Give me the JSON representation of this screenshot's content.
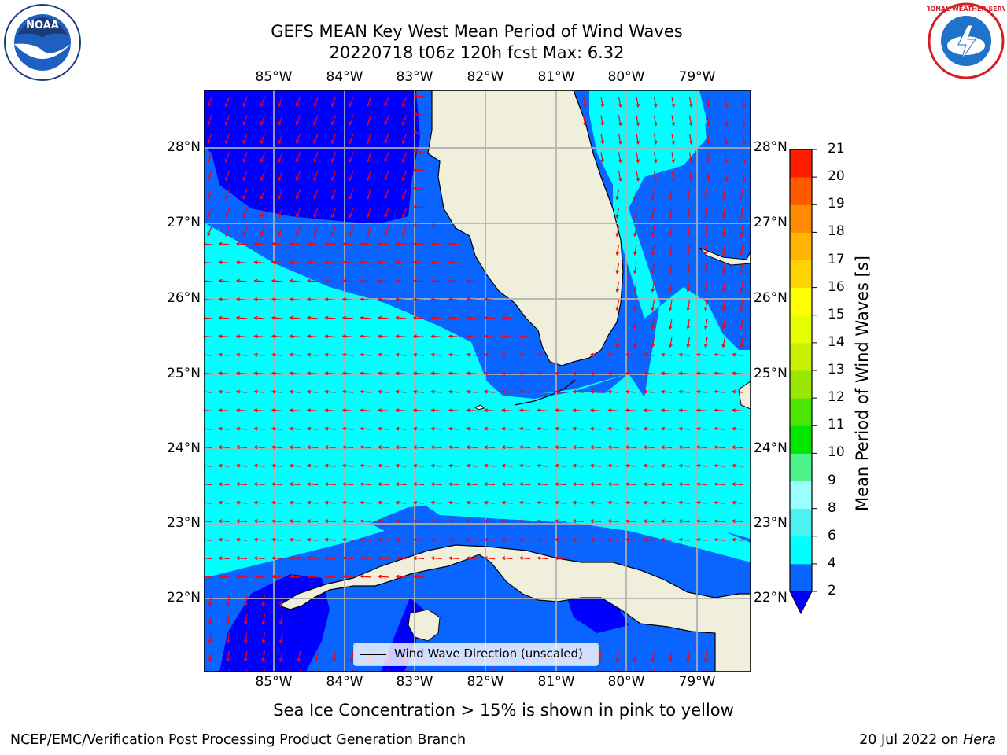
{
  "title_line1": "GEFS MEAN Key West Mean Period of Wind Waves",
  "title_line2": "20220718 t06z 120h fcst   Max: 6.32",
  "lon_labels": [
    "85°W",
    "84°W",
    "83°W",
    "82°W",
    "81°W",
    "80°W",
    "79°W"
  ],
  "lat_labels": [
    "28°N",
    "27°N",
    "26°N",
    "25°N",
    "24°N",
    "23°N",
    "22°N"
  ],
  "colorbar": {
    "label": "Mean Period of Wind Waves [s]",
    "ticks": [
      "2",
      "4",
      "6",
      "8",
      "9",
      "10",
      "11",
      "12",
      "13",
      "14",
      "15",
      "16",
      "17",
      "18",
      "19",
      "20",
      "21"
    ],
    "colors": [
      "#0a64ff",
      "#00e6ff",
      "#00ffff",
      "#4cf2f2",
      "#99ffff",
      "#4cf28c",
      "#00e600",
      "#4de600",
      "#99e600",
      "#c8f000",
      "#e6ff00",
      "#ffff00",
      "#ffd200",
      "#ffb400",
      "#ff8c00",
      "#ff5a00",
      "#ff1e00",
      "#ff0000"
    ],
    "under_color": "#0000ff"
  },
  "legend_label": "Wind Wave Direction (unscaled)",
  "ice_note": "Sea Ice Concentration > 15% is shown in pink to yellow",
  "footer_left": "NCEP/EMC/Verification Post Processing Product Generation Branch",
  "footer_date": "20 Jul 2022 on ",
  "footer_host": "Hera",
  "colors": {
    "period_2_4": "#0a64ff",
    "period_4_6": "#00ffff",
    "period_under_2": "#0000ff",
    "land": "#efefdb",
    "arrow": "#ff0000",
    "grid": "#b0b0b0"
  },
  "logos": {
    "noaa_text": "NOAA",
    "nws_text": "NATIONAL WEATHER SERVICE"
  }
}
